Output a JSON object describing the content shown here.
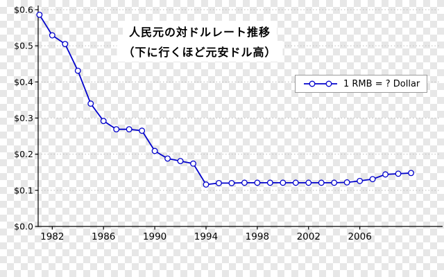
{
  "chart_data": {
    "type": "line",
    "title_line1": "人民元の対ドルレート推移",
    "title_line2": "（下に行くほど元安ドル高）",
    "legend": {
      "label": "1 RMB = ? Dollar",
      "position": "upper right"
    },
    "series": [
      {
        "name": "1 RMB = ? Dollar",
        "color": "#0000cc",
        "marker": "open-circle",
        "x": [
          1981,
          1982,
          1983,
          1984,
          1985,
          1986,
          1987,
          1988,
          1989,
          1990,
          1991,
          1992,
          1993,
          1994,
          1995,
          1996,
          1997,
          1998,
          1999,
          2000,
          2001,
          2002,
          2003,
          2004,
          2005,
          2006,
          2007,
          2008,
          2009,
          2010
        ],
        "values": [
          0.586,
          0.529,
          0.505,
          0.431,
          0.34,
          0.292,
          0.269,
          0.269,
          0.265,
          0.209,
          0.188,
          0.181,
          0.174,
          0.116,
          0.12,
          0.12,
          0.121,
          0.121,
          0.121,
          0.121,
          0.121,
          0.121,
          0.121,
          0.121,
          0.122,
          0.126,
          0.131,
          0.144,
          0.146,
          0.148
        ]
      }
    ],
    "xlim": [
      1980.9,
      2012.3
    ],
    "ylim": [
      0,
      0.6
    ],
    "xticks": {
      "values": [
        1982,
        1986,
        1990,
        1994,
        1998,
        2002,
        2006
      ],
      "labels": [
        "1982",
        "1986",
        "1990",
        "1994",
        "1998",
        "2002",
        "2006"
      ]
    },
    "yticks": {
      "values": [
        0,
        0.1,
        0.2,
        0.3,
        0.4,
        0.5,
        0.6
      ],
      "labels": [
        "$0.0",
        "$0.1",
        "$0.2",
        "$0.3",
        "$0.4",
        "$0.5",
        "$0.6"
      ]
    },
    "grid": "horizontal-dotted",
    "background": "transparency-checkerboard",
    "xlabel": "",
    "ylabel": ""
  },
  "colors": {
    "line": "#0000cc",
    "grid": "#bbbbbb",
    "axis": "#000000",
    "tick_text": "#000000",
    "legend_border": "#9a9a9a",
    "checker": "#e7e7e7"
  }
}
